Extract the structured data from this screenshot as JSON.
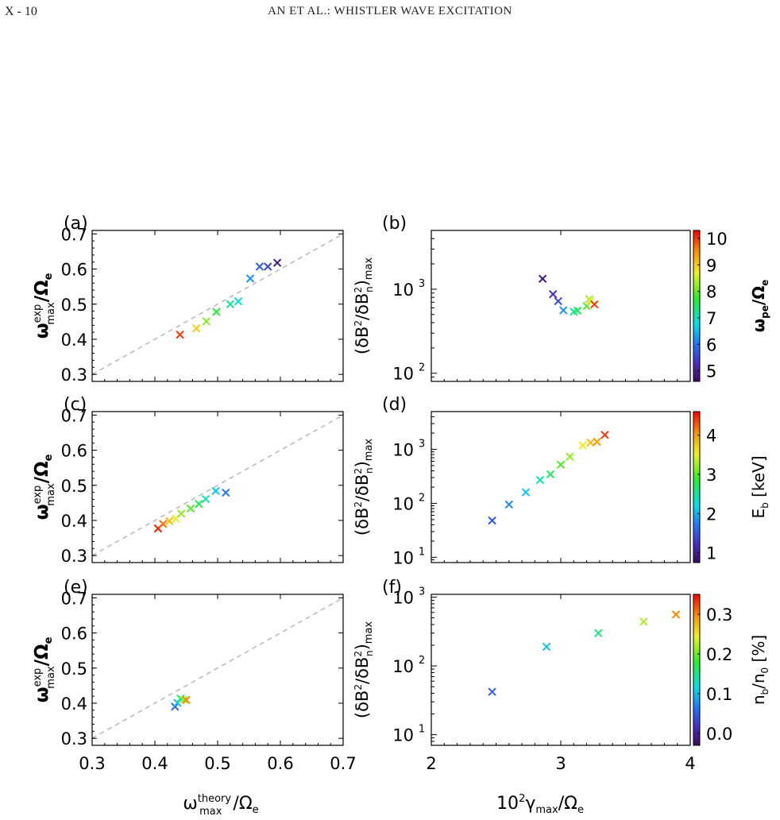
{
  "header": {
    "page_number": "X - 10",
    "running_title": "AN ET AL.: WHISTLER WAVE EXCITATION"
  },
  "figure": {
    "panel_labels": [
      "(a)",
      "(b)",
      "(c)",
      "(d)",
      "(e)",
      "(f)"
    ],
    "left_ylabel": {
      "symbol": "ω",
      "sup": "exp",
      "sub": "max",
      "denom": "/Ω",
      "denom_sub": "e"
    },
    "left_xlabel": {
      "symbol": "ω",
      "sup": "theory",
      "sub": "max",
      "denom": "/Ω",
      "denom_sub": "e"
    },
    "right_ylabel": {
      "open": "(δB",
      "sup1": "2",
      "mid": "/δB",
      "sub2": "n",
      "sup2": "2",
      "close": ")",
      "sub": "max"
    },
    "right_xlabel": {
      "coef": "10",
      "coef_sup": "2",
      "symbol": "γ",
      "sub": "max",
      "denom": "/Ω",
      "denom_sub": "e"
    },
    "left_xticks": [
      "0.3",
      "0.4",
      "0.5",
      "0.6",
      "0.7"
    ],
    "left_yticks": [
      "0.3",
      "0.4",
      "0.5",
      "0.6",
      "0.7"
    ],
    "right_xticks": [
      "2",
      "3",
      "4"
    ],
    "colorbars": [
      {
        "label": "ω",
        "label_sub": "pe",
        "label_tail": "/Ω",
        "label_tail_sub": "e",
        "ticks": [
          "5",
          "6",
          "7",
          "8",
          "9",
          "10"
        ],
        "range": [
          4.6,
          10.3
        ]
      },
      {
        "label": "E",
        "label_sub": "b",
        "label_tail": " [keV]",
        "label_tail_sub": "",
        "ticks": [
          "1",
          "2",
          "3",
          "4"
        ],
        "range": [
          0.75,
          4.6
        ]
      },
      {
        "label": "n",
        "label_sub": "b",
        "label_tail": "/n",
        "label_tail_sub": "0",
        "label_tail2": " [%]",
        "ticks": [
          "0.0",
          "0.1",
          "0.2",
          "0.3"
        ],
        "range": [
          -0.03,
          0.35
        ]
      }
    ]
  },
  "chart_data": [
    {
      "panel": "(a)",
      "type": "scatter",
      "xlim": [
        0.3,
        0.7
      ],
      "ylim": [
        0.28,
        0.71
      ],
      "reference_line": "y = x (dashed)",
      "points": [
        {
          "x": 0.44,
          "y": 0.413,
          "c": 10.0
        },
        {
          "x": 0.466,
          "y": 0.431,
          "c": 9.0
        },
        {
          "x": 0.482,
          "y": 0.451,
          "c": 8.2
        },
        {
          "x": 0.498,
          "y": 0.478,
          "c": 7.7
        },
        {
          "x": 0.52,
          "y": 0.5,
          "c": 7.2
        },
        {
          "x": 0.533,
          "y": 0.508,
          "c": 6.9
        },
        {
          "x": 0.552,
          "y": 0.573,
          "c": 6.2
        },
        {
          "x": 0.567,
          "y": 0.607,
          "c": 5.8
        },
        {
          "x": 0.58,
          "y": 0.607,
          "c": 5.5
        },
        {
          "x": 0.595,
          "y": 0.618,
          "c": 4.9
        }
      ]
    },
    {
      "panel": "(b)",
      "type": "scatter",
      "xlim": [
        2,
        4
      ],
      "ylim": [
        80,
        5000
      ],
      "yscale": "log",
      "points": [
        {
          "x": 2.86,
          "y": 1330,
          "c": 4.8
        },
        {
          "x": 2.94,
          "y": 870,
          "c": 5.2
        },
        {
          "x": 2.98,
          "y": 720,
          "c": 5.6
        },
        {
          "x": 3.02,
          "y": 560,
          "c": 6.2
        },
        {
          "x": 3.1,
          "y": 540,
          "c": 7.2
        },
        {
          "x": 3.13,
          "y": 555,
          "c": 7.5
        },
        {
          "x": 3.2,
          "y": 630,
          "c": 7.9
        },
        {
          "x": 3.22,
          "y": 760,
          "c": 8.3
        },
        {
          "x": 3.23,
          "y": 720,
          "c": 8.6
        },
        {
          "x": 3.26,
          "y": 660,
          "c": 10.0
        }
      ]
    },
    {
      "panel": "(c)",
      "type": "scatter",
      "xlim": [
        0.3,
        0.7
      ],
      "ylim": [
        0.28,
        0.71
      ],
      "reference_line": "y = x (dashed)",
      "points": [
        {
          "x": 0.405,
          "y": 0.377,
          "c": 4.5
        },
        {
          "x": 0.413,
          "y": 0.39,
          "c": 4.2
        },
        {
          "x": 0.423,
          "y": 0.398,
          "c": 3.8
        },
        {
          "x": 0.433,
          "y": 0.405,
          "c": 3.5
        },
        {
          "x": 0.442,
          "y": 0.419,
          "c": 3.2
        },
        {
          "x": 0.457,
          "y": 0.434,
          "c": 3.0
        },
        {
          "x": 0.47,
          "y": 0.447,
          "c": 2.7
        },
        {
          "x": 0.481,
          "y": 0.461,
          "c": 2.4
        },
        {
          "x": 0.497,
          "y": 0.484,
          "c": 2.1
        },
        {
          "x": 0.513,
          "y": 0.479,
          "c": 1.7
        }
      ]
    },
    {
      "panel": "(d)",
      "type": "scatter",
      "xlim": [
        2,
        4
      ],
      "ylim": [
        8,
        5000
      ],
      "yscale": "log",
      "points": [
        {
          "x": 2.47,
          "y": 48,
          "c": 1.5
        },
        {
          "x": 2.6,
          "y": 95,
          "c": 1.8
        },
        {
          "x": 2.73,
          "y": 160,
          "c": 2.1
        },
        {
          "x": 2.84,
          "y": 270,
          "c": 2.4
        },
        {
          "x": 2.92,
          "y": 345,
          "c": 2.7
        },
        {
          "x": 3.0,
          "y": 520,
          "c": 3.0
        },
        {
          "x": 3.07,
          "y": 730,
          "c": 3.2
        },
        {
          "x": 3.17,
          "y": 1180,
          "c": 3.5
        },
        {
          "x": 3.23,
          "y": 1330,
          "c": 3.8
        },
        {
          "x": 3.28,
          "y": 1380,
          "c": 4.0
        },
        {
          "x": 3.34,
          "y": 1850,
          "c": 4.4
        }
      ]
    },
    {
      "panel": "(e)",
      "type": "scatter",
      "xlim": [
        0.3,
        0.7
      ],
      "ylim": [
        0.28,
        0.71
      ],
      "reference_line": "y = x (dashed)",
      "points": [
        {
          "x": 0.432,
          "y": 0.39,
          "c": 0.05
        },
        {
          "x": 0.436,
          "y": 0.401,
          "c": 0.1
        },
        {
          "x": 0.441,
          "y": 0.413,
          "c": 0.15
        },
        {
          "x": 0.446,
          "y": 0.41,
          "c": 0.22
        },
        {
          "x": 0.45,
          "y": 0.409,
          "c": 0.3
        }
      ]
    },
    {
      "panel": "(f)",
      "type": "scatter",
      "xlim": [
        2,
        4
      ],
      "ylim": [
        7,
        1100
      ],
      "yscale": "log",
      "points": [
        {
          "x": 2.47,
          "y": 42,
          "c": 0.05
        },
        {
          "x": 2.89,
          "y": 190,
          "c": 0.1
        },
        {
          "x": 3.29,
          "y": 300,
          "c": 0.15
        },
        {
          "x": 3.64,
          "y": 440,
          "c": 0.22
        },
        {
          "x": 3.89,
          "y": 560,
          "c": 0.3
        }
      ]
    }
  ]
}
